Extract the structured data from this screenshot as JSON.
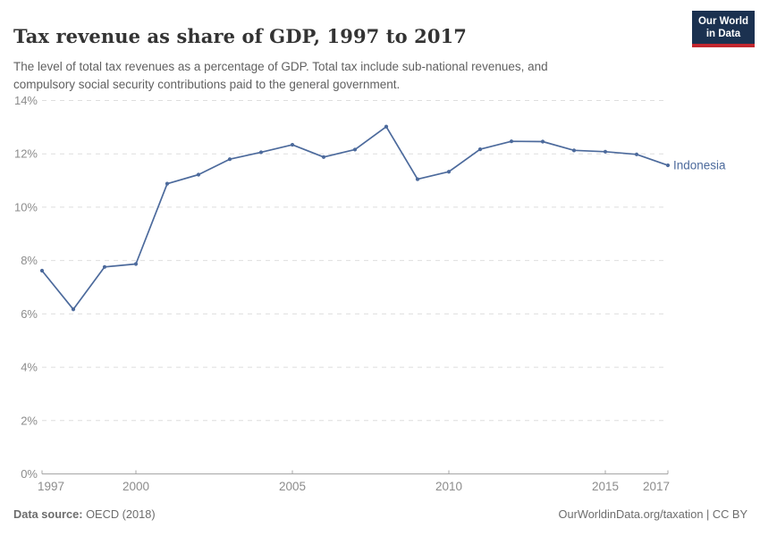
{
  "header": {
    "title": "Tax revenue as share of GDP, 1997 to 2017",
    "subtitle_line1": "The level of total tax revenues as a percentage of GDP. Total tax include sub-national revenues, and",
    "subtitle_line2": "compulsory social security contributions paid to the general government.",
    "logo_line1": "Our World",
    "logo_line2": "in Data"
  },
  "chart_data": {
    "type": "line",
    "title": "Tax revenue as share of GDP, 1997 to 2017",
    "xlabel": "",
    "ylabel": "",
    "xlim": [
      1997,
      2017
    ],
    "ylim": [
      0,
      14
    ],
    "grid": true,
    "gridline_style": "dashed",
    "x_ticks": [
      1997,
      2000,
      2005,
      2010,
      2015,
      2017
    ],
    "y_ticks": [
      0,
      2,
      4,
      6,
      8,
      10,
      12,
      14
    ],
    "y_tick_suffix": "%",
    "legend_position": "end-of-line-label",
    "series": [
      {
        "name": "Indonesia",
        "color": "#4c6a9c",
        "x": [
          1997,
          1998,
          1999,
          2000,
          2001,
          2002,
          2003,
          2004,
          2005,
          2006,
          2007,
          2008,
          2009,
          2010,
          2011,
          2012,
          2013,
          2014,
          2015,
          2016,
          2017
        ],
        "values": [
          7.62,
          6.17,
          7.76,
          7.87,
          10.88,
          11.22,
          11.8,
          12.06,
          12.34,
          11.88,
          12.16,
          13.02,
          11.05,
          11.33,
          12.17,
          12.47,
          12.46,
          12.13,
          12.08,
          11.98,
          11.57
        ]
      }
    ]
  },
  "footer": {
    "datasource_label": "Data source:",
    "datasource_value": " OECD (2018)",
    "credit": "OurWorldinData.org/taxation | CC BY"
  },
  "colors": {
    "line": "#4c6a9c",
    "gridline": "#dedede",
    "axis": "#a6a6a6",
    "axis_text": "#8c8c8c",
    "logo_bg": "#1b3150",
    "logo_stripe": "#c2262e"
  }
}
